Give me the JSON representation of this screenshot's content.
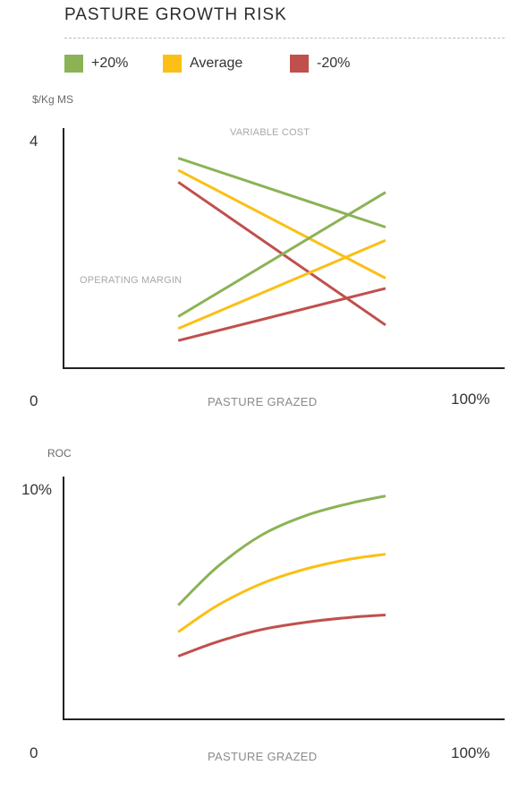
{
  "title": "PASTURE GROWTH RISK",
  "legend": [
    {
      "label": "+20%",
      "color": "#8bb356"
    },
    {
      "label": "Average",
      "color": "#fbbf15"
    },
    {
      "label": "-20%",
      "color": "#c0504d"
    }
  ],
  "chart_data": [
    {
      "type": "line",
      "ylabel": "$/Kg MS",
      "xlabel": "PASTURE GRAZED",
      "x_range_labels": [
        "0",
        "100%"
      ],
      "y_max_label": "4",
      "xlim": [
        0,
        100
      ],
      "ylim": [
        0,
        4
      ],
      "annotations": [
        "VARIABLE COST",
        "OPERATING MARGIN"
      ],
      "series": [
        {
          "name": "+20%",
          "group": "VARIABLE COST",
          "color": "#8bb356",
          "x": [
            26,
            73
          ],
          "y": [
            3.5,
            2.35
          ]
        },
        {
          "name": "Average",
          "group": "VARIABLE COST",
          "color": "#fbbf15",
          "x": [
            26,
            73
          ],
          "y": [
            3.3,
            1.5
          ]
        },
        {
          "name": "-20%",
          "group": "VARIABLE COST",
          "color": "#c0504d",
          "x": [
            26,
            73
          ],
          "y": [
            3.1,
            0.72
          ]
        },
        {
          "name": "+20%",
          "group": "OPERATING MARGIN",
          "color": "#8bb356",
          "x": [
            26,
            73
          ],
          "y": [
            0.86,
            2.93
          ]
        },
        {
          "name": "Average",
          "group": "OPERATING MARGIN",
          "color": "#fbbf15",
          "x": [
            26,
            73
          ],
          "y": [
            0.66,
            2.13
          ]
        },
        {
          "name": "-20%",
          "group": "OPERATING MARGIN",
          "color": "#c0504d",
          "x": [
            26,
            73
          ],
          "y": [
            0.46,
            1.33
          ]
        }
      ]
    },
    {
      "type": "line",
      "ylabel": "ROC",
      "xlabel": "PASTURE GRAZED",
      "x_range_labels": [
        "0",
        "100%"
      ],
      "y_max_label": "10%",
      "xlim": [
        0,
        100
      ],
      "ylim": [
        0,
        10
      ],
      "series": [
        {
          "name": "+20%",
          "color": "#8bb356",
          "x": [
            26,
            35,
            45,
            55,
            65,
            73
          ],
          "y": [
            4.7,
            6.3,
            7.6,
            8.4,
            8.9,
            9.2
          ]
        },
        {
          "name": "Average",
          "color": "#fbbf15",
          "x": [
            26,
            35,
            45,
            55,
            65,
            73
          ],
          "y": [
            3.6,
            4.7,
            5.6,
            6.2,
            6.6,
            6.8
          ]
        },
        {
          "name": "-20%",
          "color": "#c0504d",
          "x": [
            26,
            35,
            45,
            55,
            65,
            73
          ],
          "y": [
            2.6,
            3.2,
            3.7,
            4.0,
            4.2,
            4.3
          ]
        }
      ]
    }
  ]
}
